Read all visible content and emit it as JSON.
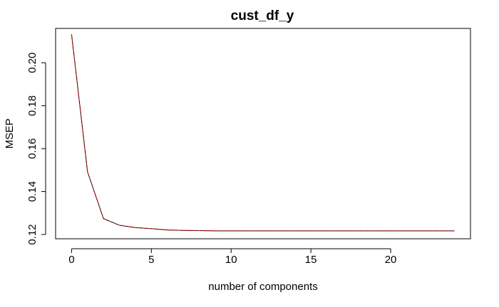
{
  "chart_data": {
    "type": "line",
    "title": "cust_df_y",
    "xlabel": "number of components",
    "ylabel": "MSEP",
    "xlim": [
      -1,
      25
    ],
    "ylim": [
      0.118,
      0.216
    ],
    "x_ticks": [
      0,
      5,
      10,
      15,
      20
    ],
    "y_ticks": [
      0.12,
      0.14,
      0.16,
      0.18,
      0.2
    ],
    "x_tick_labels": [
      "0",
      "5",
      "10",
      "15",
      "20"
    ],
    "y_tick_labels": [
      "0.12",
      "0.14",
      "0.16",
      "0.18",
      "0.20"
    ],
    "grid": false,
    "series": [
      {
        "color": "#000000",
        "line_style": "solid",
        "x": [
          0,
          1,
          2,
          3,
          4,
          5,
          6,
          7,
          8,
          9,
          10,
          11,
          12,
          13,
          14,
          15,
          16,
          17,
          18,
          19,
          20,
          21,
          22,
          23,
          24
        ],
        "values": [
          0.2133,
          0.1492,
          0.1274,
          0.1243,
          0.1232,
          0.1227,
          0.1221,
          0.1219,
          0.1218,
          0.1217,
          0.1217,
          0.1217,
          0.1217,
          0.1217,
          0.1217,
          0.1217,
          0.1217,
          0.1217,
          0.1217,
          0.1217,
          0.1217,
          0.1217,
          0.1217,
          0.1217,
          0.1217
        ]
      },
      {
        "color": "#dd0000",
        "line_style": "dashed",
        "x": [
          0,
          1,
          2,
          3,
          4,
          5,
          6,
          7,
          8,
          9,
          10,
          11,
          12,
          13,
          14,
          15,
          16,
          17,
          18,
          19,
          20,
          21,
          22,
          23,
          24
        ],
        "values": [
          0.2133,
          0.1492,
          0.1274,
          0.1243,
          0.1232,
          0.1227,
          0.1221,
          0.1219,
          0.1218,
          0.1217,
          0.1217,
          0.1217,
          0.1217,
          0.1217,
          0.1217,
          0.1217,
          0.1217,
          0.1217,
          0.1217,
          0.1217,
          0.1217,
          0.1217,
          0.1217,
          0.1217,
          0.1217
        ]
      }
    ]
  }
}
